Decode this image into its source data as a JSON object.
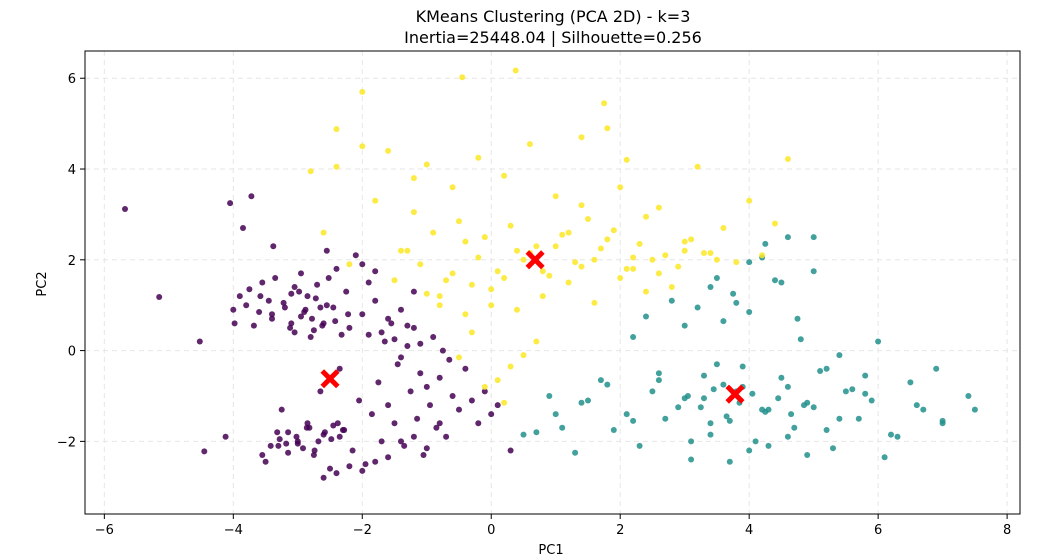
{
  "chart_data": {
    "type": "scatter",
    "title": "KMeans Clustering (PCA 2D) - k=3",
    "subtitle": "Inertia=25448.04 | Silhouette=0.256",
    "xlabel": "PC1",
    "ylabel": "PC2",
    "xlim": [
      -6.3,
      8.2
    ],
    "ylim": [
      -3.6,
      6.6
    ],
    "xticks": [
      -6,
      -4,
      -2,
      0,
      2,
      4,
      6,
      8
    ],
    "yticks": [
      -2,
      0,
      2,
      4,
      6
    ],
    "grid": true,
    "legend": "none",
    "colors": {
      "cluster_0": "#440154",
      "cluster_1": "#21918c",
      "cluster_2": "#fde725",
      "centroid": "#ff0000",
      "grid": "#e6e6e6"
    },
    "centroids": [
      {
        "x": -2.5,
        "y": -0.62
      },
      {
        "x": 3.78,
        "y": -0.96
      },
      {
        "x": 0.68,
        "y": 2.0
      }
    ],
    "series": [
      {
        "cluster": 0,
        "x": [
          -5.68,
          -5.15,
          -4.52,
          -4.45,
          -4.12,
          -4.05,
          -4.0,
          -3.98,
          -3.9,
          -3.85,
          -3.8,
          -3.75,
          -3.72,
          -3.68,
          -3.6,
          -3.55,
          -3.5,
          -3.45,
          -3.4,
          -3.38,
          -3.35,
          -3.3,
          -3.25,
          -3.2,
          -3.15,
          -3.1,
          -3.05,
          -3.0,
          -2.95,
          -2.9,
          -2.85,
          -2.8,
          -2.75,
          -2.7,
          -2.65,
          -2.6,
          -2.55,
          -2.5,
          -2.45,
          -2.4,
          -2.35,
          -2.3,
          -2.25,
          -2.2,
          -2.15,
          -2.1,
          -2.05,
          -2.0,
          -1.95,
          -1.9,
          -1.85,
          -1.8,
          -1.75,
          -1.7,
          -1.65,
          -1.6,
          -1.55,
          -1.5,
          -1.45,
          -1.4,
          -1.35,
          -1.3,
          -1.25,
          -1.2,
          -1.15,
          -1.1,
          -1.05,
          -1.0,
          -0.95,
          -0.9,
          -0.85,
          -0.8,
          -0.75,
          -0.7,
          -0.65,
          -0.6,
          -0.5,
          -0.4,
          -0.3,
          -0.2,
          -0.1,
          0.0,
          0.1,
          0.3,
          -3.58,
          -3.4,
          -3.22,
          -3.1,
          -2.98,
          -2.88,
          -2.78,
          -2.72,
          -2.62,
          -2.55,
          -3.32,
          -3.18,
          -3.02,
          -2.92,
          -2.82,
          -2.68,
          -2.6,
          -2.48,
          -2.38,
          -2.28,
          -3.12,
          -3.05,
          -2.95,
          -2.85,
          -2.75,
          -2.65,
          -2.52,
          -2.42,
          -2.32,
          -2.22,
          -3.55,
          -3.42,
          -3.28,
          -3.15,
          -3.0,
          -2.86,
          -2.74,
          -2.58,
          -2.45,
          -2.35,
          -2.0,
          -1.9,
          -1.8,
          -1.7,
          -1.6,
          -1.5,
          -1.4,
          -1.3,
          -1.2,
          -1.1,
          -2.6,
          -2.4,
          -2.2,
          -2.0,
          -1.8,
          -1.6,
          -1.4,
          -1.2,
          -1.0,
          -0.8
        ],
        "y": [
          3.12,
          1.18,
          0.2,
          -2.22,
          -1.9,
          3.25,
          0.9,
          0.6,
          1.2,
          2.7,
          1.0,
          1.35,
          3.4,
          0.55,
          0.85,
          1.5,
          -2.45,
          1.1,
          0.7,
          2.3,
          1.6,
          -2.1,
          -1.3,
          0.95,
          -1.8,
          1.25,
          0.4,
          -2.0,
          1.7,
          0.85,
          -1.6,
          0.3,
          -2.3,
          1.45,
          -0.9,
          0.6,
          2.2,
          -2.6,
          0.95,
          1.8,
          -0.4,
          -1.75,
          1.3,
          0.5,
          -2.2,
          2.1,
          -1.1,
          0.8,
          -2.5,
          0.35,
          -1.4,
          1.1,
          -0.7,
          -2.0,
          0.2,
          -1.2,
          0.6,
          -1.6,
          -0.3,
          0.9,
          -2.1,
          0.1,
          -0.9,
          0.5,
          -1.5,
          -0.5,
          -2.3,
          -0.8,
          -1.2,
          0.3,
          -1.7,
          -0.6,
          0.0,
          -1.9,
          -0.2,
          -1.0,
          -1.3,
          -0.4,
          -1.1,
          -1.6,
          -0.9,
          -1.4,
          -1.2,
          -2.2,
          1.2,
          0.8,
          1.05,
          0.6,
          1.3,
          0.9,
          0.7,
          1.15,
          0.55,
          1.0,
          -1.8,
          -2.05,
          -1.9,
          -2.15,
          -1.7,
          -2.0,
          -1.85,
          -1.95,
          -1.6,
          -1.75,
          0.5,
          1.4,
          0.75,
          1.2,
          0.45,
          0.95,
          1.6,
          0.65,
          0.35,
          0.8,
          -2.3,
          -2.1,
          -1.95,
          -2.25,
          -2.05,
          -1.7,
          -2.2,
          -1.8,
          -1.65,
          -1.9,
          1.9,
          1.5,
          1.75,
          0.4,
          0.7,
          0.25,
          -0.15,
          0.55,
          1.3,
          0.15,
          -2.8,
          -2.7,
          -2.55,
          -2.65,
          -2.45,
          -2.35,
          -2.0,
          -1.9,
          -2.15,
          -1.6
        ]
      },
      {
        "cluster": 1,
        "x": [
          0.5,
          0.7,
          0.9,
          1.1,
          1.3,
          1.5,
          1.7,
          1.9,
          2.1,
          2.3,
          2.5,
          2.7,
          2.9,
          3.1,
          3.3,
          3.5,
          3.7,
          3.9,
          4.1,
          4.3,
          4.5,
          4.7,
          4.9,
          5.1,
          5.3,
          5.5,
          5.7,
          5.9,
          6.1,
          6.3,
          6.5,
          6.7,
          6.9,
          7.0,
          7.4,
          7.5,
          2.2,
          2.4,
          2.6,
          2.8,
          3.0,
          3.2,
          3.4,
          3.6,
          3.8,
          4.0,
          4.2,
          4.4,
          4.6,
          4.8,
          5.0,
          5.2,
          5.4,
          5.6,
          5.8,
          6.0,
          3.05,
          3.25,
          3.45,
          3.65,
          3.85,
          4.05,
          4.25,
          4.45,
          4.65,
          4.85,
          3.1,
          3.4,
          3.7,
          4.0,
          4.3,
          4.6,
          4.9,
          5.2,
          1.0,
          1.4,
          1.8,
          2.2,
          2.6,
          3.0,
          3.4,
          3.8,
          4.2,
          4.6,
          5.0,
          5.4,
          5.8,
          6.2,
          6.6,
          7.0,
          3.5,
          3.75,
          4.0,
          4.25,
          4.5,
          4.75,
          5.0,
          3.3,
          3.6,
          3.9
        ],
        "y": [
          -1.85,
          -1.8,
          -1.0,
          -1.7,
          -2.25,
          -1.1,
          -0.65,
          -1.75,
          -1.4,
          -2.1,
          -0.9,
          -1.5,
          -1.25,
          -2.4,
          -1.05,
          -0.3,
          -1.55,
          -0.8,
          -2.0,
          -1.3,
          -0.6,
          -1.7,
          -1.15,
          -0.45,
          -2.15,
          -0.9,
          -1.5,
          -1.1,
          -2.35,
          -1.9,
          -0.7,
          -1.3,
          -0.4,
          -1.55,
          -1.0,
          -1.3,
          0.3,
          0.75,
          -0.5,
          1.1,
          0.55,
          0.95,
          1.4,
          0.65,
          1.05,
          0.85,
          2.05,
          1.55,
          2.5,
          0.25,
          2.5,
          -0.4,
          -0.1,
          -0.85,
          -0.55,
          0.2,
          -1.0,
          -1.25,
          -0.85,
          -1.45,
          -1.15,
          -0.95,
          -1.35,
          -1.05,
          -1.4,
          -1.2,
          -2.0,
          -1.85,
          -2.45,
          -2.2,
          -2.1,
          -1.9,
          -2.3,
          -1.75,
          -1.4,
          -1.15,
          -0.75,
          -1.55,
          -0.65,
          -1.05,
          -1.6,
          -0.9,
          -1.3,
          -0.8,
          -1.25,
          -1.5,
          -0.95,
          -1.85,
          -1.2,
          -1.6,
          1.6,
          1.25,
          1.95,
          2.35,
          1.5,
          0.7,
          1.75,
          -0.55,
          -0.75,
          -0.35
        ]
      },
      {
        "cluster": 2,
        "x": [
          -2.8,
          -2.6,
          -2.4,
          -2.2,
          -2.0,
          -1.8,
          -1.6,
          -1.4,
          -1.2,
          -1.0,
          -0.8,
          -0.6,
          -0.4,
          -0.2,
          0.0,
          0.2,
          0.4,
          0.6,
          0.8,
          1.0,
          1.2,
          1.4,
          1.6,
          1.8,
          2.0,
          2.2,
          2.4,
          2.6,
          2.8,
          3.0,
          3.2,
          3.4,
          3.6,
          3.8,
          4.0,
          4.2,
          4.4,
          4.6,
          -0.45,
          0.38,
          -2.0,
          -2.4,
          1.75,
          -1.2,
          1.4,
          2.1,
          -1.5,
          -1.0,
          -0.6,
          -0.2,
          0.2,
          0.6,
          1.0,
          1.4,
          1.8,
          2.2,
          2.6,
          3.0,
          -1.3,
          -0.9,
          -0.5,
          -0.1,
          0.3,
          0.7,
          1.1,
          1.5,
          1.9,
          2.3,
          2.7,
          3.1,
          3.5,
          -0.8,
          -0.4,
          0.0,
          0.4,
          0.8,
          1.2,
          1.6,
          2.0,
          2.4,
          -1.1,
          -0.7,
          -0.3,
          0.1,
          0.5,
          0.9,
          1.3,
          1.7,
          2.1,
          2.5,
          2.9,
          3.3,
          0.5,
          0.3,
          0.1,
          0.7,
          -0.5,
          -0.3,
          -0.1,
          0.2
        ],
        "y": [
          3.95,
          2.6,
          4.05,
          1.9,
          5.7,
          3.3,
          4.4,
          2.2,
          3.05,
          4.1,
          1.2,
          3.6,
          2.4,
          4.25,
          1.0,
          3.85,
          2.2,
          4.55,
          1.75,
          3.4,
          2.6,
          4.7,
          2.0,
          4.9,
          3.6,
          1.8,
          2.95,
          3.15,
          1.4,
          2.4,
          4.05,
          2.15,
          2.7,
          1.95,
          3.3,
          2.1,
          2.8,
          4.22,
          6.02,
          6.17,
          4.5,
          4.88,
          5.45,
          3.8,
          3.2,
          4.2,
          1.55,
          1.25,
          1.7,
          2.05,
          1.6,
          2.15,
          2.3,
          1.85,
          2.45,
          2.05,
          1.7,
          2.2,
          2.2,
          2.6,
          2.85,
          2.5,
          2.75,
          2.3,
          2.55,
          2.9,
          2.65,
          2.35,
          2.1,
          2.45,
          2.0,
          1.0,
          0.8,
          1.35,
          0.9,
          1.2,
          1.5,
          1.05,
          1.6,
          1.3,
          1.9,
          1.55,
          1.45,
          1.75,
          2.0,
          1.65,
          1.95,
          2.25,
          1.8,
          2.0,
          1.85,
          2.15,
          -0.1,
          -0.35,
          -0.65,
          0.2,
          -0.15,
          0.4,
          -0.8,
          -1.15
        ]
      }
    ]
  }
}
